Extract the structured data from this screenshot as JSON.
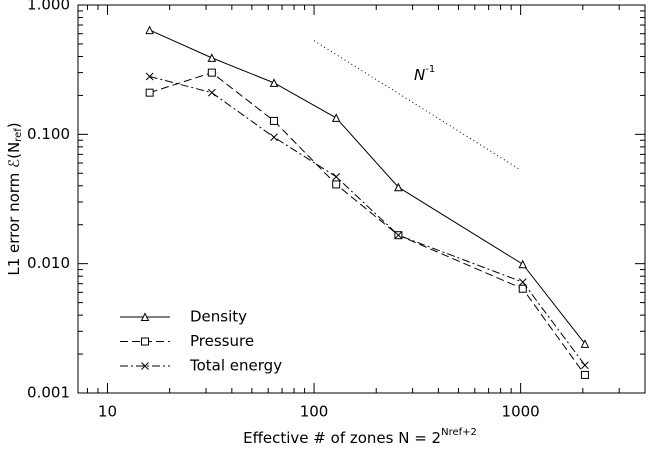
{
  "chart_data": {
    "type": "line",
    "log_x": true,
    "log_y": true,
    "xlabel": {
      "main": "Effective # of zones N = 2",
      "sup": "Nref+2"
    },
    "ylabel": {
      "main": "L1 error norm ℰ(N",
      "sub": "ref",
      "end": ")"
    },
    "x": [
      16,
      32,
      64,
      128,
      256,
      1024,
      2048
    ],
    "series": [
      {
        "name": "Density",
        "color": "#000000",
        "dash": "none",
        "marker": "triangle",
        "values": [
          0.64,
          0.39,
          0.25,
          0.134,
          0.039,
          0.0099,
          0.0024
        ]
      },
      {
        "name": "Pressure",
        "color": "#000000",
        "dash": "8,4",
        "marker": "square",
        "values": [
          0.21,
          0.3,
          0.127,
          0.041,
          0.0166,
          0.0064,
          0.00138
        ]
      },
      {
        "name": "Total energy",
        "color": "#000000",
        "dash": "8,3,2,3",
        "marker": "x",
        "values": [
          0.28,
          0.21,
          0.095,
          0.047,
          0.0166,
          0.0072,
          0.00164
        ]
      }
    ],
    "reference": {
      "x": [
        100,
        1000
      ],
      "values": [
        0.53,
        0.053
      ],
      "color": "#000000",
      "dash": "1,3",
      "label": {
        "base": "N",
        "sup": "-1"
      }
    },
    "xlim": [
      7.2,
      4000
    ],
    "ylim": [
      0.001,
      1
    ],
    "xticks": [
      10,
      100,
      1000
    ],
    "yticks": [
      {
        "value": 0.001,
        "label": "0.001"
      },
      {
        "value": 0.01,
        "label": "0.010"
      },
      {
        "value": 0.1,
        "label": "0.100"
      },
      {
        "value": 1,
        "label": "1.000"
      }
    ],
    "xminorticks": [
      8,
      9,
      20,
      30,
      40,
      50,
      60,
      70,
      80,
      90,
      200,
      300,
      400,
      500,
      600,
      700,
      800,
      900,
      2000,
      3000,
      4000
    ],
    "yminorticks": [
      0.002,
      0.003,
      0.004,
      0.005,
      0.006,
      0.007,
      0.008,
      0.009,
      0.02,
      0.03,
      0.04,
      0.05,
      0.06,
      0.07,
      0.08,
      0.09,
      0.2,
      0.3,
      0.4,
      0.5,
      0.6,
      0.7,
      0.8,
      0.9
    ],
    "grid": false,
    "legend": "lower left"
  }
}
